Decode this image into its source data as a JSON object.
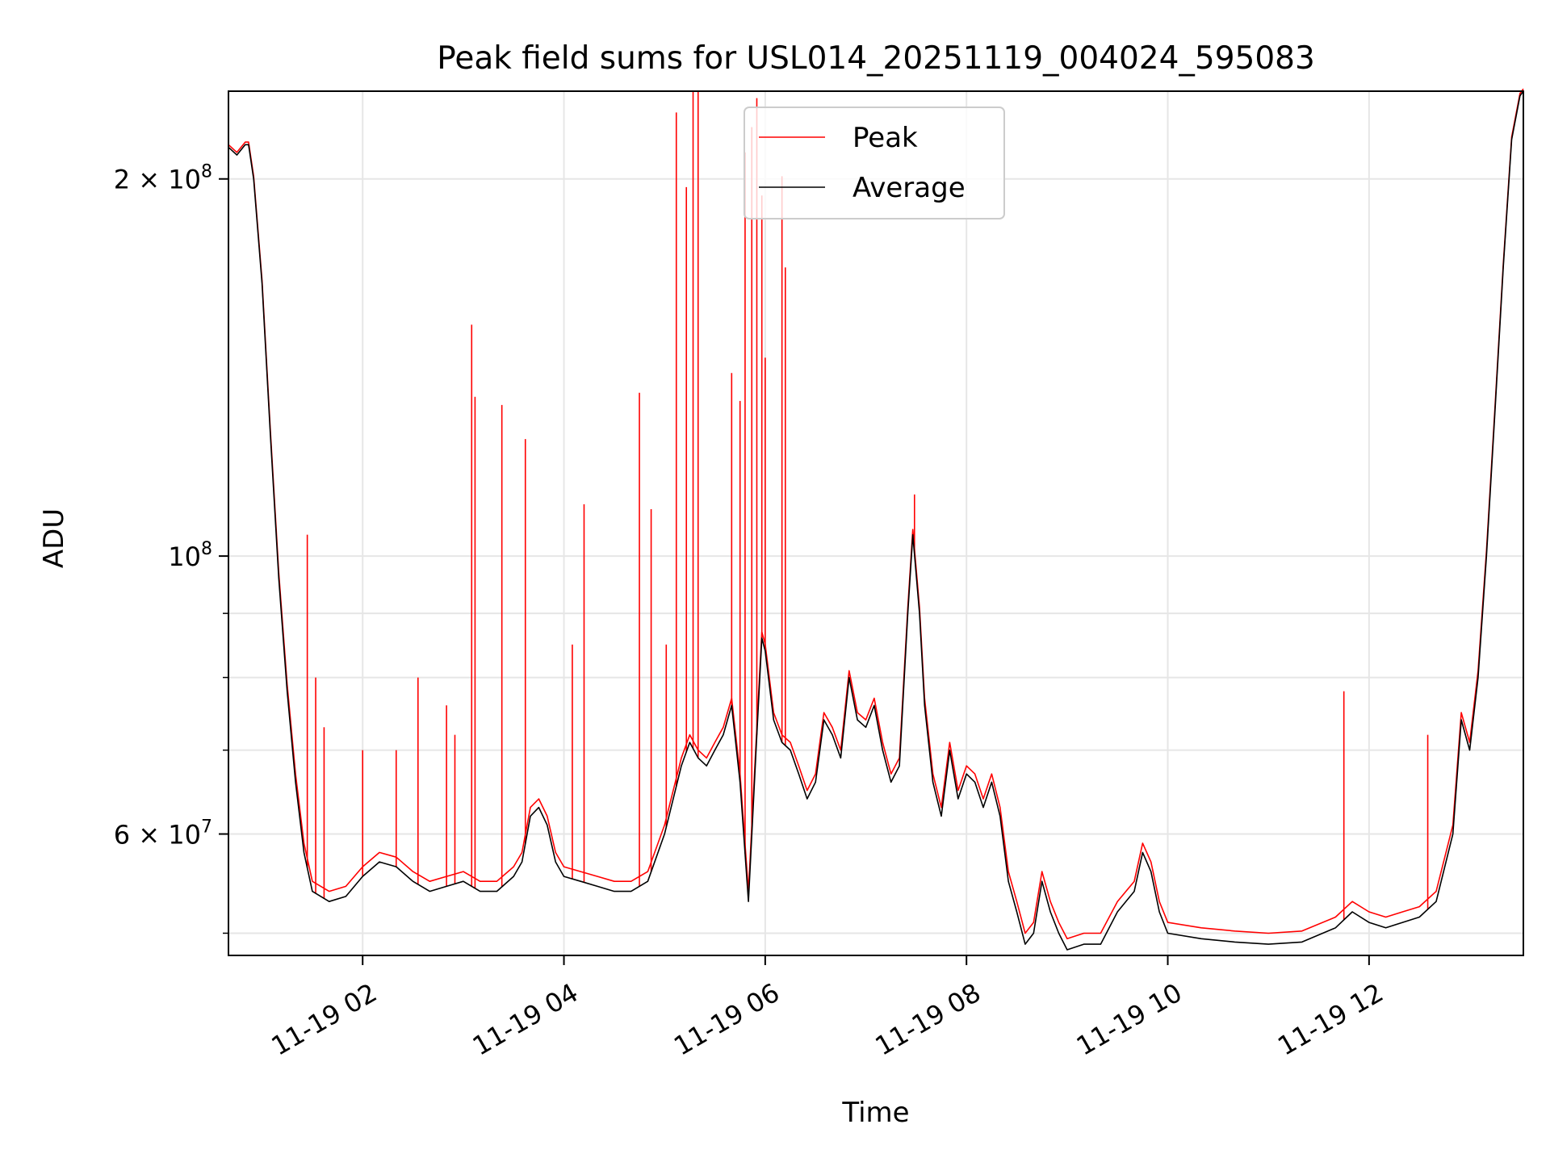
{
  "chart_data": {
    "type": "line",
    "title": "Peak field sums for USL014_20251119_004024_595083",
    "xlabel": "Time",
    "ylabel": "ADU",
    "yscale": "log",
    "xlim": [
      "2025-11-19 00:40",
      "2025-11-19 13:32"
    ],
    "ylim": [
      48000000,
      235000000
    ],
    "grid": true,
    "legend_position": "top-center",
    "x_ticks": [
      {
        "value": "2025-11-19 02:00",
        "label": "11-19 02"
      },
      {
        "value": "2025-11-19 04:00",
        "label": "11-19 04"
      },
      {
        "value": "2025-11-19 06:00",
        "label": "11-19 06"
      },
      {
        "value": "2025-11-19 08:00",
        "label": "11-19 08"
      },
      {
        "value": "2025-11-19 10:00",
        "label": "11-19 10"
      },
      {
        "value": "2025-11-19 12:00",
        "label": "11-19 12"
      }
    ],
    "y_ticks_labeled": [
      {
        "value": 60000000,
        "base": "6 × 10",
        "exp": "7"
      },
      {
        "value": 100000000,
        "base": "10",
        "exp": "8"
      },
      {
        "value": 200000000,
        "base": "2 × 10",
        "exp": "8"
      }
    ],
    "y_ticks_minor": [
      50000000,
      70000000,
      80000000,
      90000000
    ],
    "series": [
      {
        "name": "Average",
        "color": "#000000",
        "points": [
          [
            "2025-11-19 00:40",
            212000000
          ],
          [
            "2025-11-19 00:45",
            209000000
          ],
          [
            "2025-11-19 00:50",
            213000000
          ],
          [
            "2025-11-19 00:52",
            213000000
          ],
          [
            "2025-11-19 00:55",
            200000000
          ],
          [
            "2025-11-19 01:00",
            165000000
          ],
          [
            "2025-11-19 01:05",
            125000000
          ],
          [
            "2025-11-19 01:10",
            96000000
          ],
          [
            "2025-11-19 01:15",
            78000000
          ],
          [
            "2025-11-19 01:20",
            66000000
          ],
          [
            "2025-11-19 01:25",
            58000000
          ],
          [
            "2025-11-19 01:30",
            54000000
          ],
          [
            "2025-11-19 01:40",
            53000000
          ],
          [
            "2025-11-19 01:50",
            53500000
          ],
          [
            "2025-11-19 02:00",
            55500000
          ],
          [
            "2025-11-19 02:10",
            57000000
          ],
          [
            "2025-11-19 02:20",
            56500000
          ],
          [
            "2025-11-19 02:30",
            55000000
          ],
          [
            "2025-11-19 02:40",
            54000000
          ],
          [
            "2025-11-19 02:50",
            54500000
          ],
          [
            "2025-11-19 03:00",
            55000000
          ],
          [
            "2025-11-19 03:10",
            54000000
          ],
          [
            "2025-11-19 03:20",
            54000000
          ],
          [
            "2025-11-19 03:30",
            55500000
          ],
          [
            "2025-11-19 03:35",
            57000000
          ],
          [
            "2025-11-19 03:40",
            62000000
          ],
          [
            "2025-11-19 03:45",
            63000000
          ],
          [
            "2025-11-19 03:50",
            61000000
          ],
          [
            "2025-11-19 03:55",
            57000000
          ],
          [
            "2025-11-19 04:00",
            55500000
          ],
          [
            "2025-11-19 04:10",
            55000000
          ],
          [
            "2025-11-19 04:20",
            54500000
          ],
          [
            "2025-11-19 04:30",
            54000000
          ],
          [
            "2025-11-19 04:40",
            54000000
          ],
          [
            "2025-11-19 04:50",
            55000000
          ],
          [
            "2025-11-19 05:00",
            60000000
          ],
          [
            "2025-11-19 05:10",
            68000000
          ],
          [
            "2025-11-19 05:15",
            71000000
          ],
          [
            "2025-11-19 05:20",
            69000000
          ],
          [
            "2025-11-19 05:25",
            68000000
          ],
          [
            "2025-11-19 05:30",
            70000000
          ],
          [
            "2025-11-19 05:35",
            72000000
          ],
          [
            "2025-11-19 05:40",
            76000000
          ],
          [
            "2025-11-19 05:45",
            66000000
          ],
          [
            "2025-11-19 05:50",
            53000000
          ],
          [
            "2025-11-19 05:55",
            72000000
          ],
          [
            "2025-11-19 05:58",
            86000000
          ],
          [
            "2025-11-19 06:00",
            84000000
          ],
          [
            "2025-11-19 06:05",
            74000000
          ],
          [
            "2025-11-19 06:10",
            71000000
          ],
          [
            "2025-11-19 06:15",
            70000000
          ],
          [
            "2025-11-19 06:20",
            67000000
          ],
          [
            "2025-11-19 06:25",
            64000000
          ],
          [
            "2025-11-19 06:30",
            66000000
          ],
          [
            "2025-11-19 06:35",
            74000000
          ],
          [
            "2025-11-19 06:40",
            72000000
          ],
          [
            "2025-11-19 06:45",
            69000000
          ],
          [
            "2025-11-19 06:50",
            80000000
          ],
          [
            "2025-11-19 06:55",
            74000000
          ],
          [
            "2025-11-19 07:00",
            73000000
          ],
          [
            "2025-11-19 07:05",
            76000000
          ],
          [
            "2025-11-19 07:10",
            70000000
          ],
          [
            "2025-11-19 07:15",
            66000000
          ],
          [
            "2025-11-19 07:20",
            68000000
          ],
          [
            "2025-11-19 07:25",
            90000000
          ],
          [
            "2025-11-19 07:28",
            104000000
          ],
          [
            "2025-11-19 07:32",
            90000000
          ],
          [
            "2025-11-19 07:35",
            76000000
          ],
          [
            "2025-11-19 07:40",
            66000000
          ],
          [
            "2025-11-19 07:45",
            62000000
          ],
          [
            "2025-11-19 07:50",
            70000000
          ],
          [
            "2025-11-19 07:55",
            64000000
          ],
          [
            "2025-11-19 08:00",
            67000000
          ],
          [
            "2025-11-19 08:05",
            66000000
          ],
          [
            "2025-11-19 08:10",
            63000000
          ],
          [
            "2025-11-19 08:15",
            66000000
          ],
          [
            "2025-11-19 08:20",
            62000000
          ],
          [
            "2025-11-19 08:25",
            55000000
          ],
          [
            "2025-11-19 08:30",
            52000000
          ],
          [
            "2025-11-19 08:35",
            49000000
          ],
          [
            "2025-11-19 08:40",
            50000000
          ],
          [
            "2025-11-19 08:45",
            55000000
          ],
          [
            "2025-11-19 08:50",
            52000000
          ],
          [
            "2025-11-19 08:55",
            50000000
          ],
          [
            "2025-11-19 09:00",
            48500000
          ],
          [
            "2025-11-19 09:10",
            49000000
          ],
          [
            "2025-11-19 09:20",
            49000000
          ],
          [
            "2025-11-19 09:30",
            52000000
          ],
          [
            "2025-11-19 09:40",
            54000000
          ],
          [
            "2025-11-19 09:45",
            58000000
          ],
          [
            "2025-11-19 09:50",
            56000000
          ],
          [
            "2025-11-19 09:55",
            52000000
          ],
          [
            "2025-11-19 10:00",
            50000000
          ],
          [
            "2025-11-19 10:20",
            49500000
          ],
          [
            "2025-11-19 10:40",
            49200000
          ],
          [
            "2025-11-19 11:00",
            49000000
          ],
          [
            "2025-11-19 11:20",
            49200000
          ],
          [
            "2025-11-19 11:40",
            50500000
          ],
          [
            "2025-11-19 11:50",
            52000000
          ],
          [
            "2025-11-19 12:00",
            51000000
          ],
          [
            "2025-11-19 12:10",
            50500000
          ],
          [
            "2025-11-19 12:20",
            51000000
          ],
          [
            "2025-11-19 12:30",
            51500000
          ],
          [
            "2025-11-19 12:40",
            53000000
          ],
          [
            "2025-11-19 12:50",
            60000000
          ],
          [
            "2025-11-19 12:55",
            74000000
          ],
          [
            "2025-11-19 13:00",
            70000000
          ],
          [
            "2025-11-19 13:05",
            80000000
          ],
          [
            "2025-11-19 13:10",
            100000000
          ],
          [
            "2025-11-19 13:15",
            130000000
          ],
          [
            "2025-11-19 13:20",
            170000000
          ],
          [
            "2025-11-19 13:25",
            215000000
          ],
          [
            "2025-11-19 13:30",
            233000000
          ],
          [
            "2025-11-19 13:32",
            235000000
          ]
        ]
      },
      {
        "name": "Peak",
        "color": "#ff0000",
        "baseline_offset": 1000000,
        "spikes": [
          [
            "2025-11-19 01:27",
            104000000
          ],
          [
            "2025-11-19 01:32",
            80000000
          ],
          [
            "2025-11-19 01:37",
            73000000
          ],
          [
            "2025-11-19 02:00",
            70000000
          ],
          [
            "2025-11-19 02:20",
            70000000
          ],
          [
            "2025-11-19 02:33",
            80000000
          ],
          [
            "2025-11-19 02:50",
            76000000
          ],
          [
            "2025-11-19 02:55",
            72000000
          ],
          [
            "2025-11-19 03:05",
            153000000
          ],
          [
            "2025-11-19 03:07",
            134000000
          ],
          [
            "2025-11-19 03:23",
            132000000
          ],
          [
            "2025-11-19 03:37",
            124000000
          ],
          [
            "2025-11-19 04:05",
            85000000
          ],
          [
            "2025-11-19 04:12",
            110000000
          ],
          [
            "2025-11-19 04:45",
            135000000
          ],
          [
            "2025-11-19 04:52",
            109000000
          ],
          [
            "2025-11-19 05:01",
            85000000
          ],
          [
            "2025-11-19 05:07",
            226000000
          ],
          [
            "2025-11-19 05:13",
            197000000
          ],
          [
            "2025-11-19 05:17",
            235000000
          ],
          [
            "2025-11-19 05:20",
            235000000
          ],
          [
            "2025-11-19 05:40",
            140000000
          ],
          [
            "2025-11-19 05:45",
            133000000
          ],
          [
            "2025-11-19 05:48",
            210000000
          ],
          [
            "2025-11-19 05:52",
            220000000
          ],
          [
            "2025-11-19 05:55",
            232000000
          ],
          [
            "2025-11-19 05:58",
            194000000
          ],
          [
            "2025-11-19 06:00",
            144000000
          ],
          [
            "2025-11-19 06:10",
            201000000
          ],
          [
            "2025-11-19 06:12",
            170000000
          ],
          [
            "2025-11-19 07:29",
            112000000
          ],
          [
            "2025-11-19 11:45",
            78000000
          ],
          [
            "2025-11-19 12:35",
            72000000
          ]
        ]
      }
    ]
  }
}
